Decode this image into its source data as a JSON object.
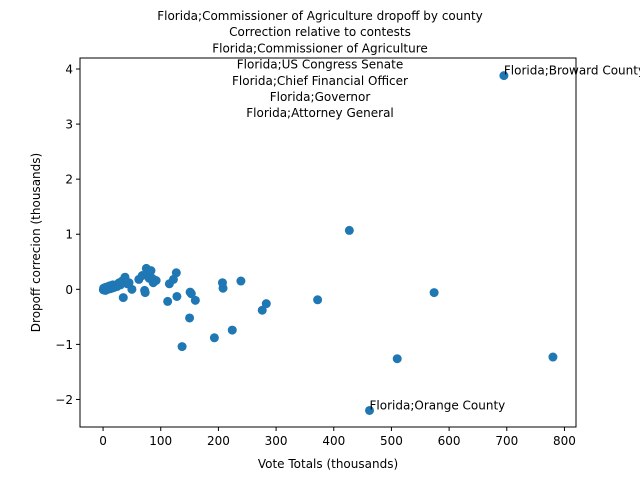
{
  "chart_data": {
    "type": "scatter",
    "title_lines": [
      "Florida;Commissioner of Agriculture dropoff by county",
      "Correction relative to contests",
      "Florida;Commissioner of Agriculture",
      "Florida;US Congress Senate",
      "Florida;Chief Financial Officer",
      "Florida;Governor",
      "Florida;Attorney General"
    ],
    "xlabel": "Vote Totals (thousands)",
    "ylabel": "Dropoff correcion (thousands)",
    "xlim": [
      -40,
      820
    ],
    "ylim": [
      -2.5,
      4.2
    ],
    "xticks": [
      0,
      100,
      200,
      300,
      400,
      500,
      600,
      700,
      800
    ],
    "yticks": [
      -2,
      -1,
      0,
      1,
      2,
      3,
      4
    ],
    "marker_color": "#1f77b4",
    "grid": false,
    "points": [
      {
        "x": 0.5,
        "y": -0.01
      },
      {
        "x": 1,
        "y": 0.02
      },
      {
        "x": 2,
        "y": 0.0
      },
      {
        "x": 3,
        "y": 0.03
      },
      {
        "x": 4,
        "y": -0.02
      },
      {
        "x": 5,
        "y": 0.01
      },
      {
        "x": 6,
        "y": 0.04
      },
      {
        "x": 7,
        "y": 0.02
      },
      {
        "x": 8,
        "y": 0.0
      },
      {
        "x": 9,
        "y": 0.05
      },
      {
        "x": 10,
        "y": 0.03
      },
      {
        "x": 11,
        "y": 0.06
      },
      {
        "x": 12,
        "y": 0.01
      },
      {
        "x": 13,
        "y": 0.04
      },
      {
        "x": 14,
        "y": 0.07
      },
      {
        "x": 15,
        "y": 0.02
      },
      {
        "x": 16,
        "y": 0.05
      },
      {
        "x": 17,
        "y": 0.08
      },
      {
        "x": 18,
        "y": 0.03
      },
      {
        "x": 19,
        "y": 0.06
      },
      {
        "x": 20,
        "y": 0.04
      },
      {
        "x": 22,
        "y": 0.07
      },
      {
        "x": 24,
        "y": 0.05
      },
      {
        "x": 26,
        "y": 0.1
      },
      {
        "x": 28,
        "y": 0.12
      },
      {
        "x": 30,
        "y": 0.08
      },
      {
        "x": 33,
        "y": 0.15
      },
      {
        "x": 35,
        "y": -0.15
      },
      {
        "x": 38,
        "y": 0.22
      },
      {
        "x": 42,
        "y": 0.1
      },
      {
        "x": 45,
        "y": 0.12
      },
      {
        "x": 50,
        "y": 0.0
      },
      {
        "x": 62,
        "y": 0.18
      },
      {
        "x": 68,
        "y": 0.25
      },
      {
        "x": 72,
        "y": -0.02
      },
      {
        "x": 73,
        "y": -0.06
      },
      {
        "x": 75,
        "y": 0.38
      },
      {
        "x": 78,
        "y": 0.3
      },
      {
        "x": 80,
        "y": 0.2
      },
      {
        "x": 83,
        "y": 0.34
      },
      {
        "x": 85,
        "y": 0.2
      },
      {
        "x": 87,
        "y": 0.12
      },
      {
        "x": 92,
        "y": 0.16
      },
      {
        "x": 112,
        "y": -0.22
      },
      {
        "x": 115,
        "y": 0.1
      },
      {
        "x": 122,
        "y": 0.18
      },
      {
        "x": 127,
        "y": 0.3
      },
      {
        "x": 128,
        "y": -0.13
      },
      {
        "x": 137,
        "y": -1.04
      },
      {
        "x": 150,
        "y": -0.52
      },
      {
        "x": 151,
        "y": -0.05
      },
      {
        "x": 153,
        "y": -0.08
      },
      {
        "x": 160,
        "y": -0.2
      },
      {
        "x": 193,
        "y": -0.88
      },
      {
        "x": 207,
        "y": 0.12
      },
      {
        "x": 208,
        "y": 0.02
      },
      {
        "x": 224,
        "y": -0.74
      },
      {
        "x": 239,
        "y": 0.15
      },
      {
        "x": 276,
        "y": -0.38
      },
      {
        "x": 283,
        "y": -0.26
      },
      {
        "x": 372,
        "y": -0.19
      },
      {
        "x": 427,
        "y": 1.07
      },
      {
        "x": 462,
        "y": -2.2
      },
      {
        "x": 510,
        "y": -1.26
      },
      {
        "x": 574,
        "y": -0.06
      },
      {
        "x": 695,
        "y": 3.88
      },
      {
        "x": 780,
        "y": -1.23
      }
    ],
    "annotations": [
      {
        "text": "Florida;Broward County",
        "x": 695,
        "y": 3.88
      },
      {
        "text": "Florida;Orange County",
        "x": 462,
        "y": -2.2
      }
    ]
  }
}
